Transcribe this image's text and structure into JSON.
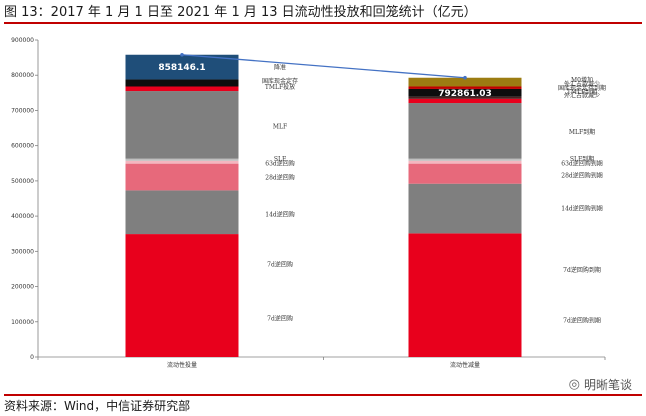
{
  "page": {
    "title": "图 13：2017 年 1 月 1 日至 2021 年 1 月 13 日流动性投放和回笼统计（亿元）",
    "source": "资料来源：Wind，中信证券研究部",
    "watermark": "明晰笔谈",
    "watermark_icon": "wechat-icon"
  },
  "chart_data": {
    "type": "bar",
    "stacked": true,
    "categories": [
      "流动性投量",
      "流动性减量"
    ],
    "ylim": [
      0,
      900000
    ],
    "yticks": [
      0,
      100000,
      200000,
      300000,
      400000,
      500000,
      600000,
      700000,
      800000,
      900000
    ],
    "grid": false,
    "legend": "none",
    "line": {
      "values": [
        858146.1,
        792861.03
      ],
      "color": "#4472c4"
    },
    "series": [
      {
        "category": "流动性投量",
        "total_label": "858146.1",
        "segments": [
          {
            "value": 349000,
            "color": "#e8001c",
            "label": "7d逆回购"
          },
          {
            "value": 124000,
            "color": "#7f7f7f",
            "label": "14d逆回购"
          },
          {
            "value": 76000,
            "color": "#e7697b",
            "label": "28d逆回购"
          },
          {
            "value": 8000,
            "color": "#f4b6bf",
            "label": "63d逆回购"
          },
          {
            "value": 6000,
            "color": "#bfbfbf",
            "label": "SLF"
          },
          {
            "value": 192000,
            "color": "#7f7f7f",
            "label": "MLF"
          },
          {
            "value": 13000,
            "color": "#e8001c",
            "label": "TMLF投放"
          },
          {
            "value": 20000,
            "color": "#0d0d0d",
            "label": "国库现金定存"
          },
          {
            "value": 70146.1,
            "color": "#1f4e79",
            "label": "降准"
          }
        ]
      },
      {
        "category": "流动性减量",
        "total_label": "792861.03",
        "segments": [
          {
            "value": 351000,
            "color": "#e8001c",
            "label": "7d逆回购到期"
          },
          {
            "value": 141000,
            "color": "#7f7f7f",
            "label": "14d逆回购到期"
          },
          {
            "value": 57000,
            "color": "#e7697b",
            "label": "28d逆回购到期"
          },
          {
            "value": 8000,
            "color": "#f4b6bf",
            "label": "63d逆回购到期"
          },
          {
            "value": 6000,
            "color": "#bfbfbf",
            "label": "SLF到期"
          },
          {
            "value": 158000,
            "color": "#7f7f7f",
            "label": "MLF到期"
          },
          {
            "value": 12000,
            "color": "#e8001c",
            "label": "TMLF到期"
          },
          {
            "value": 6000,
            "color": "#4d1f1f",
            "label": "外汇占款减少"
          },
          {
            "value": 22000,
            "color": "#0d0d0d",
            "label": "国库现金定存到期"
          },
          {
            "value": 7000,
            "color": "#c00000",
            "label": ""
          },
          {
            "value": 24861.03,
            "color": "#9c7c12",
            "label": "M0增加"
          }
        ]
      }
    ],
    "annotations": [
      {
        "text": "降准",
        "bar": 0,
        "at": 822000
      },
      {
        "text": "国库现金定存",
        "bar": 0,
        "at": 783000
      },
      {
        "text": "TMLF投放",
        "bar": 0,
        "at": 767000
      },
      {
        "text": "MLF",
        "bar": 0,
        "at": 655000
      },
      {
        "text": "SLF",
        "bar": 0,
        "at": 562000
      },
      {
        "text": "63d逆回购",
        "bar": 0,
        "at": 550000
      },
      {
        "text": "28d逆回购",
        "bar": 0,
        "at": 509000
      },
      {
        "text": "14d逆回购",
        "bar": 0,
        "at": 405000
      },
      {
        "text": "7d逆回购",
        "bar": 0,
        "at": 262000
      },
      {
        "text": "7d逆回购",
        "bar": 0,
        "at": 109000
      },
      {
        "text": "M0增加",
        "bar": 1,
        "at": 786000
      },
      {
        "text": "外汇占款减少",
        "bar": 1,
        "at": 775000
      },
      {
        "text": "国库现金定存到期",
        "bar": 1,
        "at": 764000
      },
      {
        "text": "TMLF到期",
        "bar": 1,
        "at": 753000
      },
      {
        "text": "外汇占款减少",
        "bar": 1,
        "at": 742000
      },
      {
        "text": "MLF到期",
        "bar": 1,
        "at": 639000
      },
      {
        "text": "SLF到期",
        "bar": 1,
        "at": 562000
      },
      {
        "text": "63d逆回购到期",
        "bar": 1,
        "at": 550000
      },
      {
        "text": "28d逆回购到期",
        "bar": 1,
        "at": 516000
      },
      {
        "text": "14d逆回购到期",
        "bar": 1,
        "at": 422000
      },
      {
        "text": "7d逆回购到期",
        "bar": 1,
        "at": 247000
      },
      {
        "text": "7d逆回购到期",
        "bar": 1,
        "at": 104000
      }
    ]
  }
}
